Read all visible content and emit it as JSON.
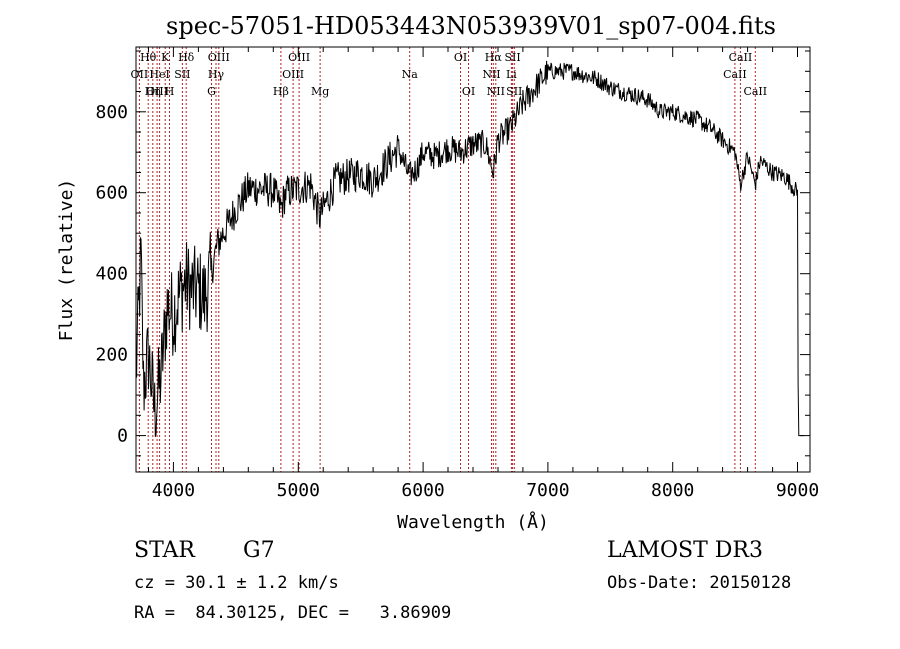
{
  "chart_data": {
    "type": "line",
    "title": "spec-57051-HD053443N053939V01_sp07-004.fits",
    "xlabel": "Wavelength (Å)",
    "ylabel": "Flux (relative)",
    "xlim": [
      3700,
      9100
    ],
    "ylim": [
      -90,
      960
    ],
    "x_ticks": [
      4000,
      5000,
      6000,
      7000,
      8000,
      9000
    ],
    "y_ticks": [
      0,
      200,
      400,
      600,
      800
    ],
    "line_color": "#b22222",
    "spectrum_anchor_points": [
      [
        3700,
        150
      ],
      [
        3740,
        440
      ],
      [
        3760,
        120
      ],
      [
        3800,
        200
      ],
      [
        3850,
        60
      ],
      [
        3900,
        150
      ],
      [
        3950,
        320
      ],
      [
        4000,
        300
      ],
      [
        4050,
        350
      ],
      [
        4100,
        380
      ],
      [
        4150,
        360
      ],
      [
        4200,
        360
      ],
      [
        4250,
        340
      ],
      [
        4300,
        400
      ],
      [
        4350,
        470
      ],
      [
        4400,
        500
      ],
      [
        4500,
        560
      ],
      [
        4600,
        610
      ],
      [
        4700,
        610
      ],
      [
        4800,
        605
      ],
      [
        4860,
        560
      ],
      [
        4900,
        600
      ],
      [
        5000,
        610
      ],
      [
        5100,
        620
      ],
      [
        5170,
        540
      ],
      [
        5200,
        560
      ],
      [
        5300,
        630
      ],
      [
        5400,
        640
      ],
      [
        5500,
        650
      ],
      [
        5600,
        630
      ],
      [
        5700,
        670
      ],
      [
        5800,
        710
      ],
      [
        5890,
        640
      ],
      [
        5950,
        660
      ],
      [
        6000,
        700
      ],
      [
        6100,
        690
      ],
      [
        6200,
        710
      ],
      [
        6300,
        700
      ],
      [
        6400,
        720
      ],
      [
        6500,
        720
      ],
      [
        6563,
        650
      ],
      [
        6600,
        730
      ],
      [
        6700,
        760
      ],
      [
        6800,
        820
      ],
      [
        6900,
        860
      ],
      [
        7000,
        900
      ],
      [
        7100,
        900
      ],
      [
        7200,
        900
      ],
      [
        7300,
        890
      ],
      [
        7400,
        880
      ],
      [
        7500,
        860
      ],
      [
        7600,
        850
      ],
      [
        7700,
        840
      ],
      [
        7800,
        830
      ],
      [
        7900,
        800
      ],
      [
        8000,
        800
      ],
      [
        8100,
        790
      ],
      [
        8200,
        780
      ],
      [
        8300,
        760
      ],
      [
        8400,
        730
      ],
      [
        8500,
        700
      ],
      [
        8542,
        620
      ],
      [
        8600,
        690
      ],
      [
        8662,
        620
      ],
      [
        8700,
        680
      ],
      [
        8800,
        650
      ],
      [
        8900,
        640
      ],
      [
        8950,
        620
      ],
      [
        9000,
        600
      ],
      [
        9005,
        130
      ],
      [
        9010,
        0
      ]
    ],
    "lines": [
      {
        "label": "Hθ",
        "x": 3798,
        "row": 0
      },
      {
        "label": "OII",
        "x": 3727,
        "row": 1
      },
      {
        "label": "OIII",
        "x": 3869,
        "row": 2
      },
      {
        "label": "K",
        "x": 3934,
        "row": 0
      },
      {
        "label": "H",
        "x": 3968,
        "row": 2
      },
      {
        "label": "Hη",
        "x": 3835,
        "row": 2
      },
      {
        "label": "HeI",
        "x": 3889,
        "row": 1
      },
      {
        "label": "SII",
        "x": 4072,
        "row": 1
      },
      {
        "label": "Hδ",
        "x": 4102,
        "row": 0
      },
      {
        "label": "OIII",
        "x": 4363,
        "row": 0
      },
      {
        "label": "Hγ",
        "x": 4341,
        "row": 1
      },
      {
        "label": "G",
        "x": 4305,
        "row": 2
      },
      {
        "label": "Hβ",
        "x": 4861,
        "row": 2
      },
      {
        "label": "OIII",
        "x": 4959,
        "row": 1
      },
      {
        "label": "OIII",
        "x": 5007,
        "row": 0
      },
      {
        "label": "Mg",
        "x": 5175,
        "row": 2
      },
      {
        "label": "Na",
        "x": 5893,
        "row": 1
      },
      {
        "label": "OI",
        "x": 6300,
        "row": 0
      },
      {
        "label": "OI",
        "x": 6364,
        "row": 2
      },
      {
        "label": "Hα",
        "x": 6563,
        "row": 0
      },
      {
        "label": "NII",
        "x": 6548,
        "row": 1
      },
      {
        "label": "NII",
        "x": 6583,
        "row": 2
      },
      {
        "label": "SII",
        "x": 6717,
        "row": 0
      },
      {
        "label": "Li",
        "x": 6708,
        "row": 1
      },
      {
        "label": "SII",
        "x": 6731,
        "row": 2
      },
      {
        "label": "CaII",
        "x": 8542,
        "row": 0
      },
      {
        "label": "CaII",
        "x": 8498,
        "row": 1
      },
      {
        "label": "CaII",
        "x": 8662,
        "row": 2
      }
    ]
  },
  "info": {
    "object_class": "STAR",
    "subclass": "G7",
    "survey": "LAMOST DR3",
    "cz_text": "cz = 30.1 ± 1.2 km/s",
    "obs_date_text": "Obs-Date: 20150128",
    "radec_text": "RA =  84.30125, DEC =   3.86909"
  }
}
